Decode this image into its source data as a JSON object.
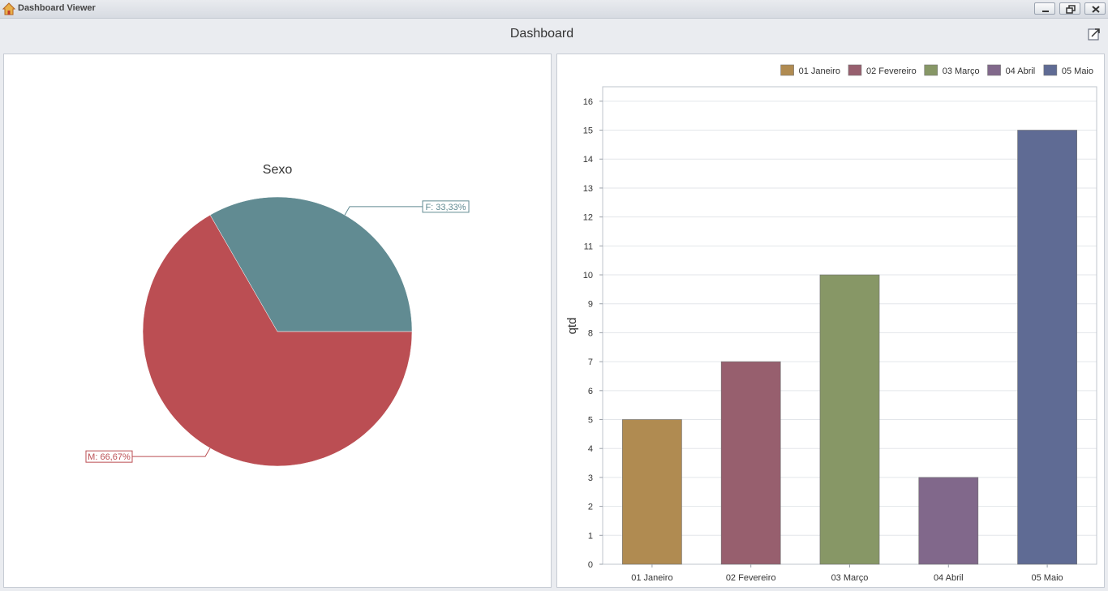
{
  "window": {
    "title": "Dashboard Viewer"
  },
  "header": {
    "title": "Dashboard"
  },
  "icons": {
    "app": "home-icon",
    "minimize": "minimize-icon",
    "restore": "restore-icon",
    "close": "close-icon",
    "export": "export-icon"
  },
  "colors": {
    "pie_f": "#618b92",
    "pie_m": "#bb4e53",
    "jan": "#b08b51",
    "fev": "#975f6e",
    "mar": "#879766",
    "abr": "#81688b",
    "mai": "#5f6b94"
  },
  "chart_data": [
    {
      "type": "pie",
      "title": "Sexo",
      "slices": [
        {
          "label": "F",
          "value": 33.33,
          "display": "F: 33,33%",
          "color": "#618b92"
        },
        {
          "label": "M",
          "value": 66.67,
          "display": "M: 66,67%",
          "color": "#bb4e53"
        }
      ]
    },
    {
      "type": "bar",
      "categories": [
        "01 Janeiro",
        "02 Fevereiro",
        "03 Março",
        "04 Abril",
        "05 Maio"
      ],
      "values": [
        5,
        7,
        10,
        3,
        15
      ],
      "colors": [
        "#b08b51",
        "#975f6e",
        "#879766",
        "#81688b",
        "#5f6b94"
      ],
      "ylabel": "qtd",
      "ylim": [
        0,
        16.5
      ],
      "yticks": [
        "0",
        "1",
        "2",
        "3",
        "4",
        "5",
        "6",
        "7",
        "8",
        "9",
        "10",
        "11",
        "12",
        "13",
        "14",
        "15",
        "16"
      ],
      "legend": [
        "01 Janeiro",
        "02 Fevereiro",
        "03 Março",
        "04 Abril",
        "05 Maio"
      ],
      "legend_position": "top-right",
      "grid": true
    }
  ]
}
